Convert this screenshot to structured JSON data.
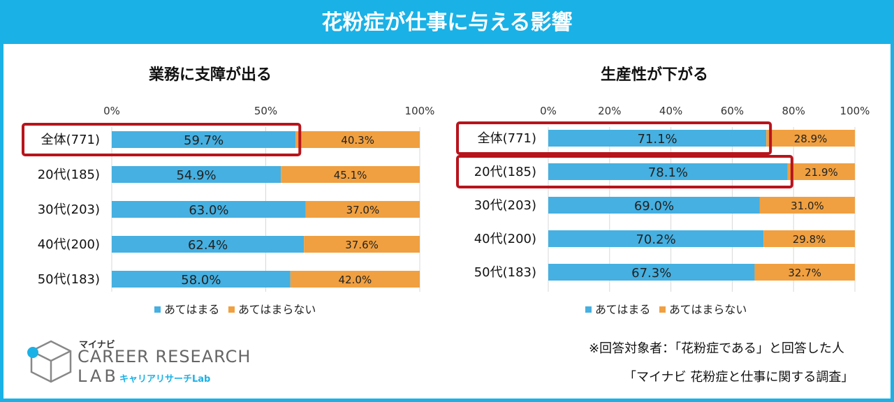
{
  "page": {
    "title": "花粉症が仕事に与える影響"
  },
  "colors": {
    "accent": "#1ab1e6",
    "yes": "#45b0e1",
    "no": "#f0a040",
    "highlight": "#b8141c"
  },
  "chart_data": [
    {
      "type": "bar",
      "orientation": "horizontal-stacked-100",
      "title": "業務に支障が出る",
      "categories": [
        "全体(771)",
        "20代(185)",
        "30代(203)",
        "40代(200)",
        "50代(183)"
      ],
      "series": [
        {
          "name": "あてはまる",
          "values": [
            59.7,
            54.9,
            63.0,
            62.4,
            58.0
          ],
          "labels": [
            "59.7%",
            "54.9%",
            "63.0%",
            "62.4%",
            "58.0%"
          ]
        },
        {
          "name": "あてはまらない",
          "values": [
            40.3,
            45.1,
            37.0,
            37.6,
            42.0
          ],
          "labels": [
            "40.3%",
            "45.1%",
            "37.0%",
            "37.6%",
            "42.0%"
          ]
        }
      ],
      "xlim": [
        0,
        100
      ],
      "ticks": [
        0,
        50,
        100
      ],
      "tick_labels": [
        "0%",
        "50%",
        "100%"
      ],
      "highlighted": [
        "全体(771)"
      ],
      "legend": "bottom"
    },
    {
      "type": "bar",
      "orientation": "horizontal-stacked-100",
      "title": "生産性が下がる",
      "categories": [
        "全体(771)",
        "20代(185)",
        "30代(203)",
        "40代(200)",
        "50代(183)"
      ],
      "series": [
        {
          "name": "あてはまる",
          "values": [
            71.1,
            78.1,
            69.0,
            70.2,
            67.3
          ],
          "labels": [
            "71.1%",
            "78.1%",
            "69.0%",
            "70.2%",
            "67.3%"
          ]
        },
        {
          "name": "あてはまらない",
          "values": [
            28.9,
            21.9,
            31.0,
            29.8,
            32.7
          ],
          "labels": [
            "28.9%",
            "21.9%",
            "31.0%",
            "29.8%",
            "32.7%"
          ]
        }
      ],
      "xlim": [
        0,
        100
      ],
      "ticks": [
        0,
        20,
        40,
        60,
        80,
        100
      ],
      "tick_labels": [
        "0%",
        "20%",
        "40%",
        "60%",
        "80%",
        "100%"
      ],
      "highlighted": [
        "全体(771)",
        "20代(185)"
      ],
      "legend": "bottom"
    }
  ],
  "notes": {
    "respondents": "※回答対象者：「花粉症である」と回答した人",
    "survey": "「マイナビ 花粉症と仕事に関する調査」"
  },
  "logo": {
    "brand": "マイナビ",
    "line1": "CAREER RESEARCH",
    "line2": "LAB",
    "subtitle": "キャリアリサーチLab"
  }
}
